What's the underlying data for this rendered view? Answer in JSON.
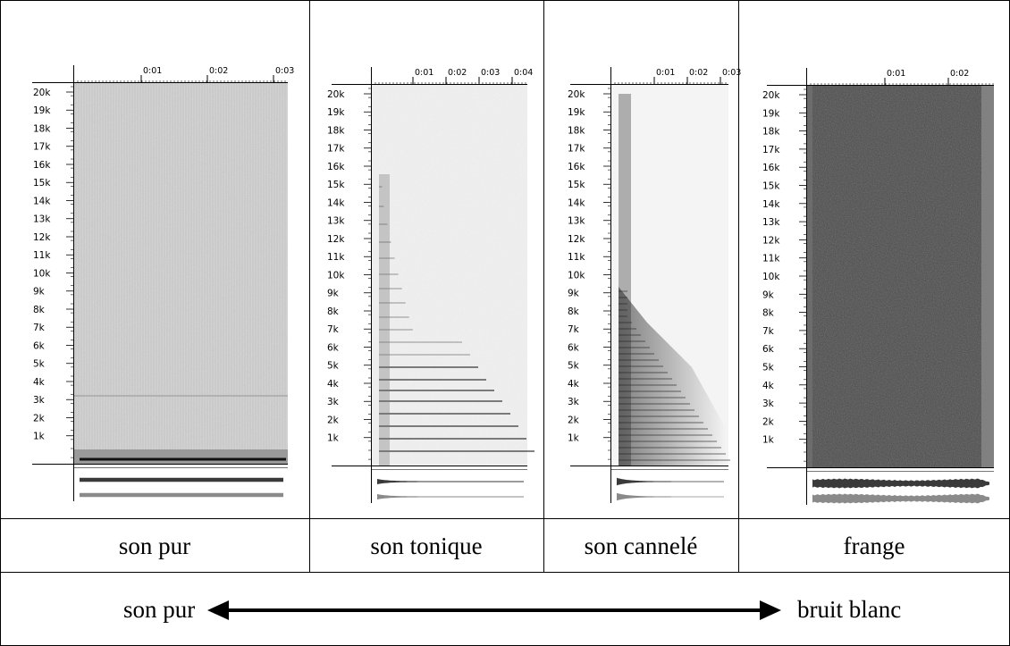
{
  "panels": [
    {
      "label": "son pur",
      "time_ticks": [
        "0:01",
        "0:02",
        "0:03"
      ],
      "spectrum": "pure"
    },
    {
      "label": "son tonique",
      "time_ticks": [
        "0:01",
        "0:02",
        "0:03",
        "0:04"
      ],
      "spectrum": "tonic"
    },
    {
      "label": "son cannelé",
      "time_ticks": [
        "0:01",
        "0:02",
        "0:03"
      ],
      "spectrum": "grooved"
    },
    {
      "label": "frange",
      "time_ticks": [
        "0:01",
        "0:02"
      ],
      "spectrum": "fringe"
    }
  ],
  "freq_ticks": [
    "20k",
    "19k",
    "18k",
    "17k",
    "16k",
    "15k",
    "14k",
    "13k",
    "12k",
    "11k",
    "10k",
    "9k",
    "8k",
    "7k",
    "6k",
    "5k",
    "4k",
    "3k",
    "2k",
    "1k"
  ],
  "continuum": {
    "left": "son pur",
    "right": "bruit blanc"
  }
}
